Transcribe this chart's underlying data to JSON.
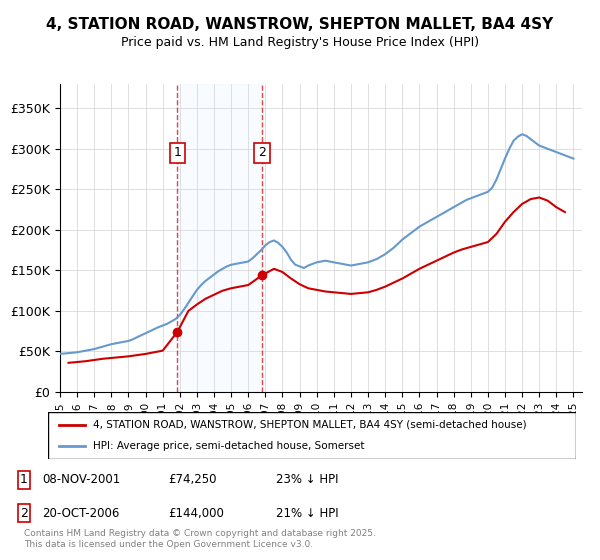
{
  "title": "4, STATION ROAD, WANSTROW, SHEPTON MALLET, BA4 4SY",
  "subtitle": "Price paid vs. HM Land Registry's House Price Index (HPI)",
  "xlabel": "",
  "ylabel": "",
  "ylim": [
    0,
    380000
  ],
  "yticks": [
    0,
    50000,
    100000,
    150000,
    200000,
    250000,
    300000,
    350000
  ],
  "ytick_labels": [
    "£0",
    "£50K",
    "£100K",
    "£150K",
    "£200K",
    "£250K",
    "£300K",
    "£350K"
  ],
  "purchase1_date": 2001.86,
  "purchase1_price": 74250,
  "purchase1_label": "1",
  "purchase2_date": 2006.8,
  "purchase2_price": 144000,
  "purchase2_label": "2",
  "hpi_color": "#6699cc",
  "price_color": "#cc0000",
  "shade_color": "#ddeeff",
  "annotation_box_color": "#cc0000",
  "legend_label_price": "4, STATION ROAD, WANSTROW, SHEPTON MALLET, BA4 4SY (semi-detached house)",
  "legend_label_hpi": "HPI: Average price, semi-detached house, Somerset",
  "footnote1": "1     08-NOV-2001          £74,250          23% ↓ HPI",
  "footnote2": "2     20-OCT-2006          £144,000        21% ↓ HPI",
  "copyright": "Contains HM Land Registry data © Crown copyright and database right 2025.\nThis data is licensed under the Open Government Licence v3.0.",
  "hpi_years": [
    1995,
    1995.25,
    1995.5,
    1995.75,
    1996,
    1996.25,
    1996.5,
    1996.75,
    1997,
    1997.25,
    1997.5,
    1997.75,
    1998,
    1998.25,
    1998.5,
    1998.75,
    1999,
    1999.25,
    1999.5,
    1999.75,
    2000,
    2000.25,
    2000.5,
    2000.75,
    2001,
    2001.25,
    2001.5,
    2001.75,
    2002,
    2002.25,
    2002.5,
    2002.75,
    2003,
    2003.25,
    2003.5,
    2003.75,
    2004,
    2004.25,
    2004.5,
    2004.75,
    2005,
    2005.25,
    2005.5,
    2005.75,
    2006,
    2006.25,
    2006.5,
    2006.75,
    2007,
    2007.25,
    2007.5,
    2007.75,
    2008,
    2008.25,
    2008.5,
    2008.75,
    2009,
    2009.25,
    2009.5,
    2009.75,
    2010,
    2010.25,
    2010.5,
    2010.75,
    2011,
    2011.25,
    2011.5,
    2011.75,
    2012,
    2012.25,
    2012.5,
    2012.75,
    2013,
    2013.25,
    2013.5,
    2013.75,
    2014,
    2014.25,
    2014.5,
    2014.75,
    2015,
    2015.25,
    2015.5,
    2015.75,
    2016,
    2016.25,
    2016.5,
    2016.75,
    2017,
    2017.25,
    2017.5,
    2017.75,
    2018,
    2018.25,
    2018.5,
    2018.75,
    2019,
    2019.25,
    2019.5,
    2019.75,
    2020,
    2020.25,
    2020.5,
    2020.75,
    2021,
    2021.25,
    2021.5,
    2021.75,
    2022,
    2022.25,
    2022.5,
    2022.75,
    2023,
    2023.25,
    2023.5,
    2023.75,
    2024,
    2024.25,
    2024.5,
    2024.75,
    2025
  ],
  "hpi_values": [
    47000,
    47500,
    48000,
    48500,
    49000,
    50000,
    51000,
    52000,
    53000,
    54500,
    56000,
    57500,
    59000,
    60000,
    61000,
    62000,
    63000,
    65000,
    67500,
    70000,
    72500,
    75000,
    77500,
    80000,
    82000,
    84000,
    87000,
    90000,
    95000,
    102000,
    110000,
    118000,
    126000,
    132000,
    137000,
    141000,
    145000,
    149000,
    152000,
    155000,
    157000,
    158000,
    159000,
    160000,
    161000,
    165000,
    170000,
    175000,
    181000,
    185000,
    187000,
    184000,
    179000,
    172000,
    163000,
    157000,
    155000,
    153000,
    156000,
    158000,
    160000,
    161000,
    162000,
    161000,
    160000,
    159000,
    158000,
    157000,
    156000,
    157000,
    158000,
    159000,
    160000,
    162000,
    164000,
    167000,
    170000,
    174000,
    178000,
    183000,
    188000,
    192000,
    196000,
    200000,
    204000,
    207000,
    210000,
    213000,
    216000,
    219000,
    222000,
    225000,
    228000,
    231000,
    234000,
    237000,
    239000,
    241000,
    243000,
    245000,
    247000,
    252000,
    262000,
    275000,
    288000,
    300000,
    310000,
    315000,
    318000,
    316000,
    312000,
    308000,
    304000,
    302000,
    300000,
    298000,
    296000,
    294000,
    292000,
    290000,
    288000
  ],
  "price_years": [
    1995.5,
    1996.0,
    1996.5,
    1997.0,
    1997.5,
    1998.0,
    1998.5,
    1999.0,
    1999.5,
    2000.0,
    2000.5,
    2001.0,
    2001.86,
    2002.5,
    2003.0,
    2003.5,
    2004.0,
    2004.5,
    2005.0,
    2005.5,
    2006.0,
    2006.8,
    2007.5,
    2008.0,
    2008.5,
    2009.0,
    2009.5,
    2010.0,
    2010.5,
    2011.0,
    2011.5,
    2012.0,
    2012.5,
    2013.0,
    2013.5,
    2014.0,
    2014.5,
    2015.0,
    2015.5,
    2016.0,
    2016.5,
    2017.0,
    2017.5,
    2018.0,
    2018.5,
    2019.0,
    2019.5,
    2020.0,
    2020.5,
    2021.0,
    2021.5,
    2022.0,
    2022.5,
    2023.0,
    2023.5,
    2024.0,
    2024.5
  ],
  "price_values": [
    36000,
    37000,
    38000,
    39500,
    41000,
    42000,
    43000,
    44000,
    45500,
    47000,
    49000,
    51000,
    74250,
    100000,
    108000,
    115000,
    120000,
    125000,
    128000,
    130000,
    132000,
    144000,
    152000,
    148000,
    140000,
    133000,
    128000,
    126000,
    124000,
    123000,
    122000,
    121000,
    122000,
    123000,
    126000,
    130000,
    135000,
    140000,
    146000,
    152000,
    157000,
    162000,
    167000,
    172000,
    176000,
    179000,
    182000,
    185000,
    195000,
    210000,
    222000,
    232000,
    238000,
    240000,
    236000,
    228000,
    222000
  ]
}
